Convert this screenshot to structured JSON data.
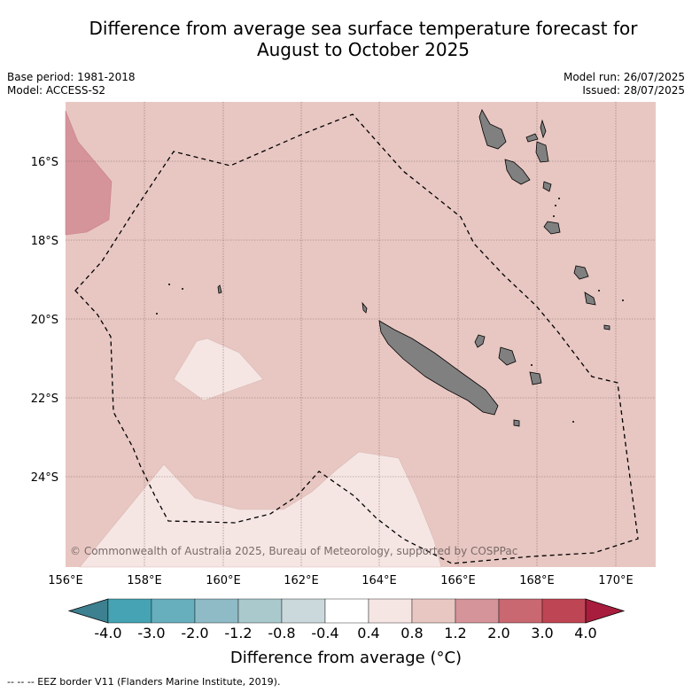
{
  "header": {
    "title_line1": "Difference from average sea surface temperature forecast for",
    "title_line2": "August to October 2025",
    "base_period": "Base period: 1981-2018",
    "model": "Model: ACCESS-S2",
    "model_run": "Model run: 26/07/2025",
    "issued": "Issued: 28/07/2025"
  },
  "map": {
    "lat_labels": [
      "16°S",
      "18°S",
      "20°S",
      "22°S",
      "24°S"
    ],
    "lon_labels": [
      "156°E",
      "158°E",
      "160°E",
      "162°E",
      "164°E",
      "166°E",
      "168°E",
      "170°E"
    ],
    "copyright": "© Commonwealth of Australia 2025, Bureau of Meteorology, supported by COSPPac",
    "colors": {
      "ocean_fill": "#e8c7c2",
      "warm_patch": "#d5939a",
      "near_zero_patch": "#f5e6e4",
      "land": "#808080",
      "eez_line": "#000000"
    }
  },
  "colorbar": {
    "tick_labels": [
      "-4.0",
      "-3.0",
      "-2.0",
      "-1.2",
      "-0.8",
      "-0.4",
      "0.4",
      "0.8",
      "1.2",
      "2.0",
      "3.0",
      "4.0"
    ],
    "colors": [
      "#3d808f",
      "#45a3b3",
      "#68afbe",
      "#8ebbc6",
      "#a9c9cd",
      "#ccd9dc",
      "#ffffff",
      "#f5e6e4",
      "#e8c7c2",
      "#d5939a",
      "#c96870",
      "#be4553",
      "#a81d3d"
    ],
    "label": "Difference from average (°C)"
  },
  "footnote": "--  --  -- EEZ border V11 (Flanders Marine Institute, 2019)."
}
